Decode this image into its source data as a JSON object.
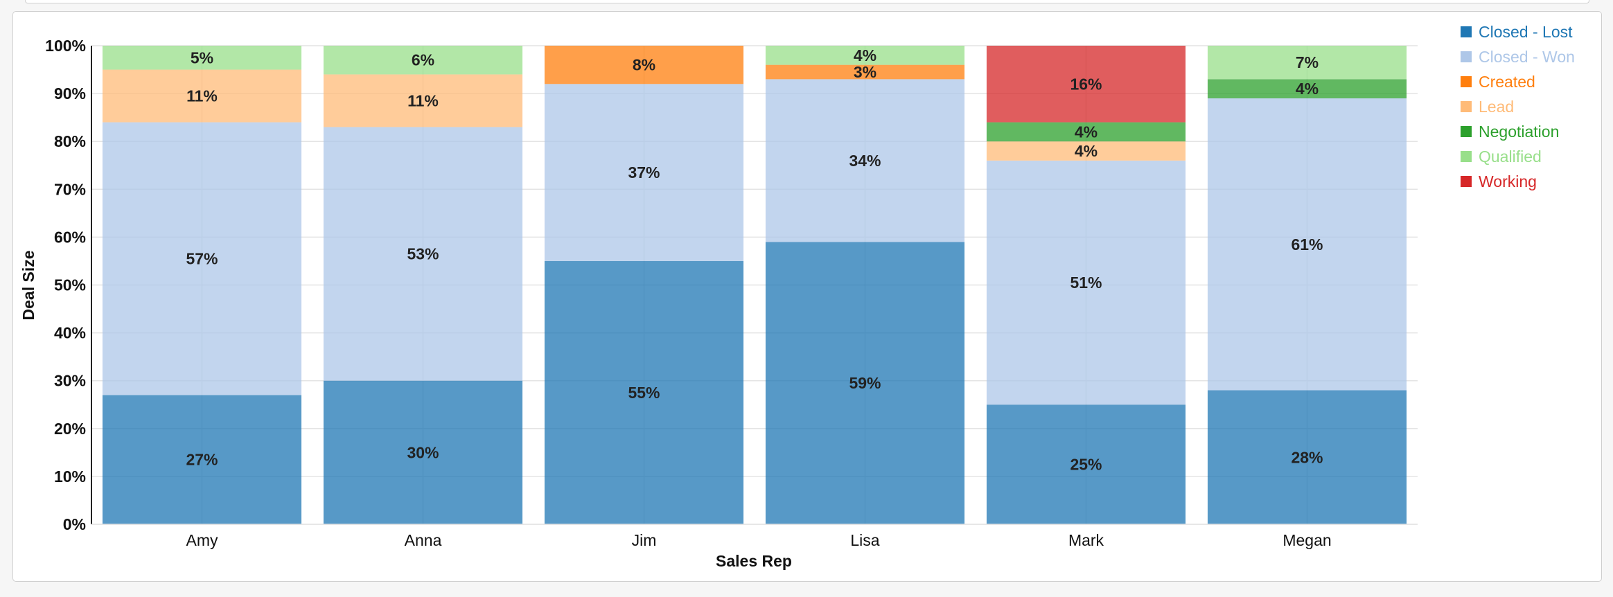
{
  "chart_data": {
    "type": "bar",
    "stacked": true,
    "normalized": true,
    "xlabel": "Sales Rep",
    "ylabel": "Deal Size",
    "ylim": [
      0,
      100
    ],
    "yticks": [
      "0%",
      "10%",
      "20%",
      "30%",
      "40%",
      "50%",
      "60%",
      "70%",
      "80%",
      "90%",
      "100%"
    ],
    "grid": true,
    "legend_position": "top-right",
    "categories": [
      "Amy",
      "Anna",
      "Jim",
      "Lisa",
      "Mark",
      "Megan"
    ],
    "series": [
      {
        "name": "Closed - Lost",
        "color": "#1f77b4",
        "values": [
          27,
          30,
          55,
          59,
          25,
          28
        ]
      },
      {
        "name": "Closed - Won",
        "color": "#aec7e8",
        "values": [
          57,
          53,
          37,
          34,
          51,
          61
        ]
      },
      {
        "name": "Created",
        "color": "#ff7f0e",
        "values": [
          0,
          0,
          8,
          3,
          0,
          0
        ]
      },
      {
        "name": "Lead",
        "color": "#ffbb78",
        "values": [
          11,
          11,
          0,
          0,
          4,
          0
        ]
      },
      {
        "name": "Negotiation",
        "color": "#2ca02c",
        "values": [
          0,
          0,
          0,
          0,
          4,
          4
        ]
      },
      {
        "name": "Qualified",
        "color": "#98df8a",
        "values": [
          5,
          6,
          0,
          4,
          0,
          7
        ]
      },
      {
        "name": "Working",
        "color": "#d62728",
        "values": [
          0,
          0,
          0,
          0,
          16,
          0
        ]
      }
    ],
    "data_labels": [
      [
        "27%",
        "57%",
        "",
        "11%",
        "",
        "5%",
        ""
      ],
      [
        "30%",
        "53%",
        "",
        "11%",
        "",
        "6%",
        ""
      ],
      [
        "55%",
        "37%",
        "8%",
        "",
        "",
        "",
        ""
      ],
      [
        "59%",
        "34%",
        "3%",
        "",
        "",
        "4%",
        ""
      ],
      [
        "25%",
        "51%",
        "",
        "4%",
        "4%",
        "",
        "16%"
      ],
      [
        "28%",
        "61%",
        "",
        "",
        "4%",
        "7%",
        ""
      ]
    ]
  }
}
